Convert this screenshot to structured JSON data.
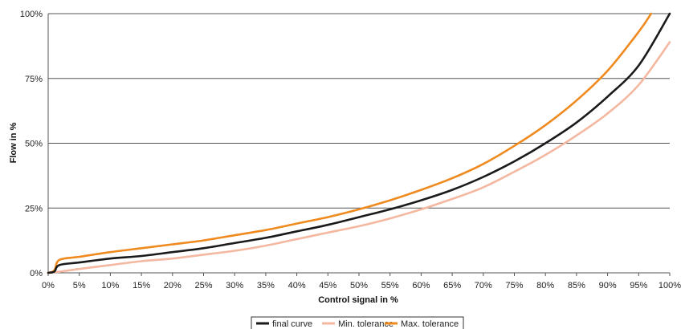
{
  "chart_data": {
    "type": "line",
    "xlabel": "Control signal in %",
    "ylabel": "Flow in %",
    "xlim": [
      0,
      100
    ],
    "ylim": [
      0,
      100
    ],
    "x_ticks": [
      "0%",
      "5%",
      "10%",
      "15%",
      "20%",
      "25%",
      "30%",
      "35%",
      "40%",
      "45%",
      "50%",
      "55%",
      "60%",
      "65%",
      "70%",
      "75%",
      "80%",
      "85%",
      "90%",
      "95%",
      "100%"
    ],
    "y_ticks": [
      "0%",
      "25%",
      "50%",
      "75%",
      "100%"
    ],
    "grid": "horizontal",
    "legend_position": "bottom",
    "series": [
      {
        "name": "final curve",
        "color": "#1a1a1a",
        "x": [
          0,
          1,
          1.8,
          5,
          10,
          15,
          20,
          25,
          30,
          35,
          40,
          45,
          50,
          55,
          60,
          65,
          70,
          75,
          80,
          85,
          90,
          95,
          100
        ],
        "y": [
          0,
          0.5,
          3,
          4,
          5.5,
          6.5,
          8,
          9.5,
          11.5,
          13.5,
          16,
          18.5,
          21.5,
          24.5,
          28,
          32,
          37,
          43,
          50,
          58,
          68,
          80,
          100
        ]
      },
      {
        "name": "Min. tolerance",
        "color": "#f4b7a0",
        "x": [
          0,
          1,
          2,
          5,
          10,
          15,
          20,
          25,
          30,
          35,
          40,
          45,
          50,
          55,
          60,
          65,
          70,
          75,
          80,
          85,
          90,
          95,
          100
        ],
        "y": [
          0,
          0.3,
          0.5,
          1.5,
          3,
          4.5,
          5.5,
          7,
          8.5,
          10.5,
          13,
          15.5,
          18,
          21,
          24.5,
          28.5,
          33,
          39,
          45.5,
          53,
          61.5,
          72.5,
          89
        ]
      },
      {
        "name": "Max. tolerance",
        "color": "#ef8a1f",
        "x": [
          0,
          1,
          1.8,
          5,
          10,
          15,
          20,
          25,
          30,
          35,
          40,
          45,
          50,
          55,
          60,
          65,
          70,
          75,
          80,
          85,
          90,
          95,
          97
        ],
        "y": [
          0,
          1,
          5,
          6.2,
          8,
          9.5,
          11,
          12.5,
          14.5,
          16.5,
          19,
          21.5,
          24.5,
          28,
          32,
          36.5,
          42,
          49,
          57,
          66.5,
          78,
          93,
          100
        ]
      }
    ]
  }
}
